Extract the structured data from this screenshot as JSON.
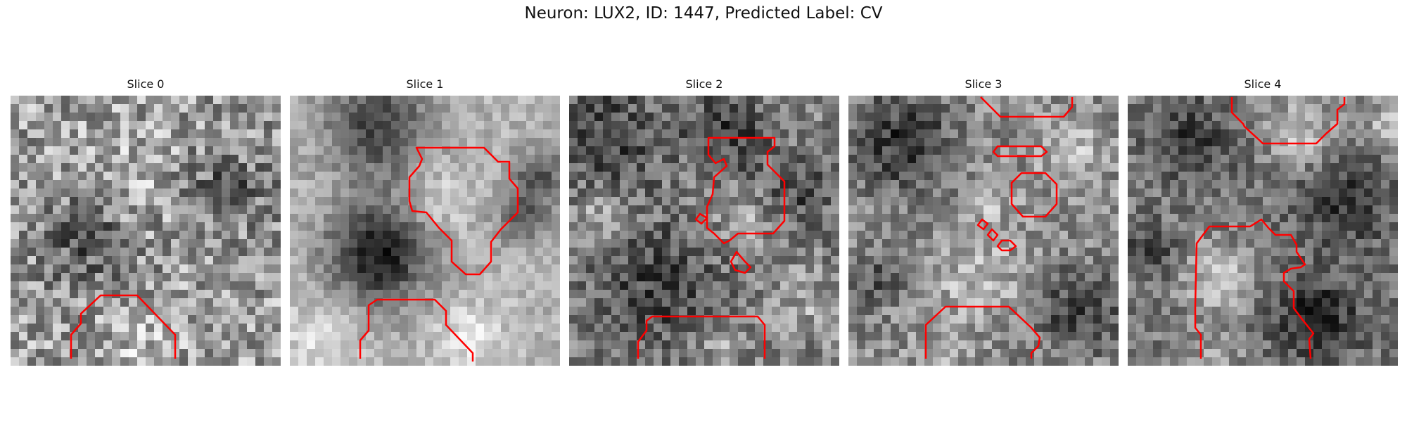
{
  "figure": {
    "title": "Neuron: LUX2, ID: 1447, Predicted Label: CV"
  },
  "panels": [
    {
      "title": "Slice 0"
    },
    {
      "title": "Slice 1"
    },
    {
      "title": "Slice 2"
    },
    {
      "title": "Slice 3"
    },
    {
      "title": "Slice 4"
    }
  ],
  "colors": {
    "contour": "#ff0000",
    "background": "#ffffff"
  }
}
